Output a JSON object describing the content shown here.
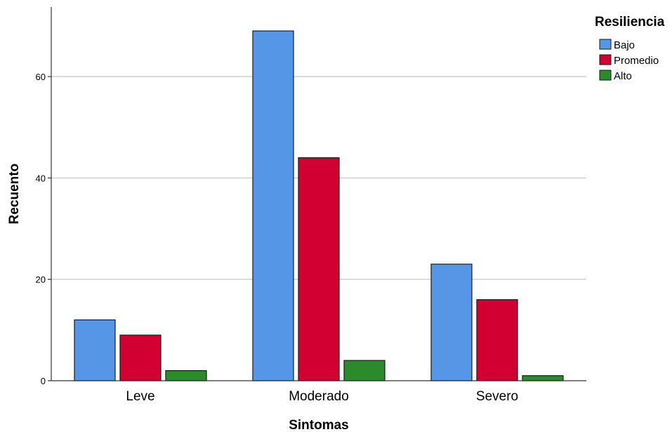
{
  "chart_data": {
    "type": "bar",
    "categories": [
      "Leve",
      "Moderado",
      "Severo"
    ],
    "series": [
      {
        "name": "Bajo",
        "color": "#5596e6",
        "values": [
          12,
          69,
          23
        ]
      },
      {
        "name": "Promedio",
        "color": "#d20032",
        "values": [
          9,
          44,
          16
        ]
      },
      {
        "name": "Alto",
        "color": "#2b8a2b",
        "values": [
          2,
          4,
          1
        ]
      }
    ],
    "title": "",
    "xlabel": "Sintomas",
    "ylabel": "Recuento",
    "ylim": [
      0,
      74
    ],
    "yticks": [
      0,
      20,
      40,
      60
    ],
    "grid": true,
    "legend": {
      "title": "Resiliencia",
      "position": "top-right"
    }
  }
}
